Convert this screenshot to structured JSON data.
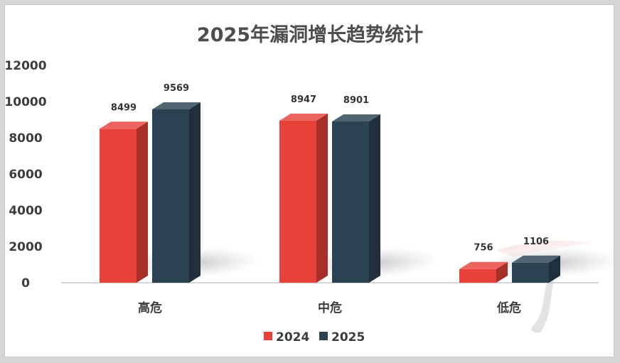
{
  "chart_data": {
    "type": "bar",
    "title": "2025年漏洞增长趋势统计",
    "categories": [
      "高危",
      "中危",
      "低危"
    ],
    "series": [
      {
        "name": "2024",
        "values": [
          8499,
          8947,
          756
        ],
        "color": "#e8413a"
      },
      {
        "name": "2025",
        "values": [
          9569,
          8901,
          1106
        ],
        "color": "#2b4253"
      }
    ],
    "yticks": [
      "12000",
      "10000",
      "8000",
      "6000",
      "4000",
      "2000",
      "0"
    ],
    "ylim": [
      0,
      12000
    ],
    "legend_position": "bottom",
    "grid": false
  }
}
